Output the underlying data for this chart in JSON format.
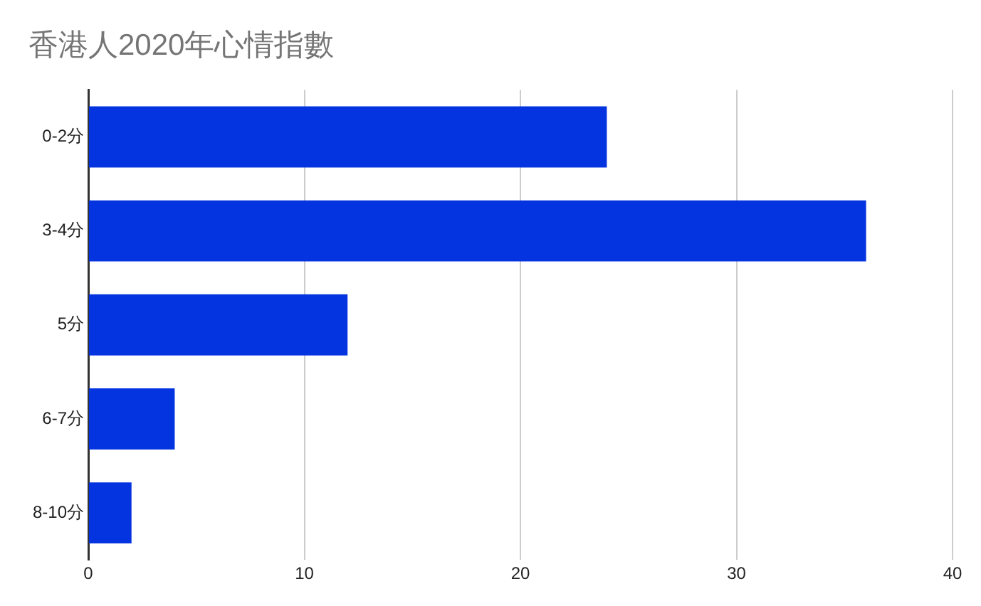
{
  "chart_data": {
    "type": "bar",
    "orientation": "horizontal",
    "title": "香港人2020年心情指數",
    "categories": [
      "0-2分",
      "3-4分",
      "5分",
      "6-7分",
      "8-10分"
    ],
    "values": [
      24,
      36,
      12,
      4,
      2
    ],
    "color": "#0433e0",
    "xlim": [
      0,
      40
    ],
    "xticks": [
      0,
      10,
      20,
      30,
      40
    ],
    "grid": "x",
    "legend": false
  }
}
